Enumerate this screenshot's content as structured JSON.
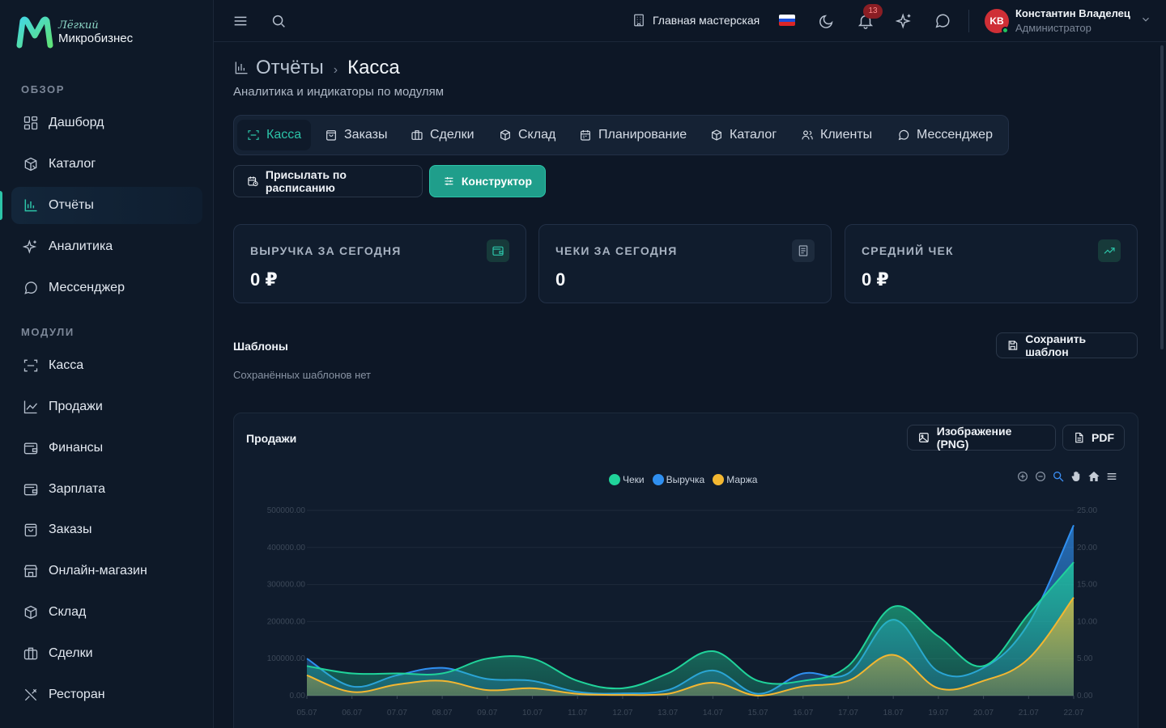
{
  "brand": {
    "sub": "Лёгкий",
    "main": "Микробизнес"
  },
  "sidebar": {
    "section_overview": "ОБЗОР",
    "overview_items": [
      {
        "label": "Дашборд",
        "icon": "dashboard-icon"
      },
      {
        "label": "Каталог",
        "icon": "catalog-icon"
      },
      {
        "label": "Отчёты",
        "icon": "reports-icon",
        "active": true
      },
      {
        "label": "Аналитика",
        "icon": "sparkle-icon"
      },
      {
        "label": "Мессенджер",
        "icon": "chat-icon"
      }
    ],
    "section_modules": "МОДУЛИ",
    "module_items": [
      {
        "label": "Касса",
        "icon": "scan-icon"
      },
      {
        "label": "Продажи",
        "icon": "line-chart-icon"
      },
      {
        "label": "Финансы",
        "icon": "wallet-icon"
      },
      {
        "label": "Зарплата",
        "icon": "wallet-icon"
      },
      {
        "label": "Заказы",
        "icon": "bag-icon"
      },
      {
        "label": "Онлайн-магазин",
        "icon": "store-icon"
      },
      {
        "label": "Склад",
        "icon": "box-icon"
      },
      {
        "label": "Сделки",
        "icon": "briefcase-icon"
      },
      {
        "label": "Ресторан",
        "icon": "utensils-icon"
      }
    ]
  },
  "topbar": {
    "workshop": "Главная мастерская",
    "notifications_count": "13",
    "user_initials": "KB",
    "user_name": "Константин Владелец",
    "user_role": "Администратор"
  },
  "page": {
    "crumb_parent": "Отчёты",
    "crumb_sep": "›",
    "crumb_current": "Касса",
    "subtitle": "Аналитика и индикаторы по модулям"
  },
  "tabs": [
    {
      "label": "Касса",
      "icon": "scan-icon",
      "active": true
    },
    {
      "label": "Заказы",
      "icon": "bag-icon"
    },
    {
      "label": "Сделки",
      "icon": "briefcase-icon"
    },
    {
      "label": "Склад",
      "icon": "box-icon"
    },
    {
      "label": "Планирование",
      "icon": "calendar-icon"
    },
    {
      "label": "Каталог",
      "icon": "catalog-icon"
    },
    {
      "label": "Клиенты",
      "icon": "users-icon"
    },
    {
      "label": "Мессенджер",
      "icon": "chat-icon"
    }
  ],
  "actions": {
    "schedule": "Присылать по расписанию",
    "builder": "Конструктор"
  },
  "kpis": [
    {
      "label": "ВЫРУЧКА ЗА СЕГОДНЯ",
      "value": "0 ₽",
      "icon": "wallet-icon"
    },
    {
      "label": "ЧЕКИ ЗА СЕГОДНЯ",
      "value": "0",
      "icon": "receipt-icon"
    },
    {
      "label": "СРЕДНИЙ ЧЕК",
      "value": "0 ₽",
      "icon": "trend-up-icon"
    }
  ],
  "templates": {
    "title": "Шаблоны",
    "empty": "Сохранённых шаблонов нет",
    "save": "Сохранить шаблон"
  },
  "sales_card": {
    "title": "Продажи",
    "png": "Изображение (PNG)",
    "pdf": "PDF"
  },
  "colors": {
    "accent": "#2cc4a8",
    "checks": "#20d39a",
    "revenue": "#2f8ff0",
    "margin": "#f3b731"
  },
  "chart_data": {
    "type": "area",
    "x": [
      "05.07",
      "06.07",
      "07.07",
      "08.07",
      "09.07",
      "10.07",
      "11.07",
      "12.07",
      "13.07",
      "14.07",
      "15.07",
      "16.07",
      "17.07",
      "18.07",
      "19.07",
      "20.07",
      "21.07",
      "22.07"
    ],
    "y_left_ticks": [
      "500000.00",
      "400000.00",
      "300000.00",
      "200000.00",
      "100000.00",
      "0.00"
    ],
    "y_right_ticks": [
      "25.00",
      "20.00",
      "15.00",
      "10.00",
      "5.00",
      "0.00"
    ],
    "ylim_left": [
      0,
      500000
    ],
    "ylim_right": [
      0,
      25
    ],
    "legend_position": "top-center",
    "series": [
      {
        "name": "Чеки",
        "axis": "right",
        "color": "#20d39a",
        "values": [
          4,
          3,
          3,
          3,
          5,
          5,
          2,
          1,
          3,
          6,
          2,
          2,
          4,
          12,
          8,
          4,
          11,
          18
        ]
      },
      {
        "name": "Выручка",
        "axis": "left",
        "color": "#2f8ff0",
        "values": [
          100000,
          25000,
          55000,
          75000,
          45000,
          40000,
          10000,
          6000,
          15000,
          68000,
          5000,
          60000,
          60000,
          205000,
          65000,
          75000,
          195000,
          460000
        ]
      },
      {
        "name": "Маржа",
        "axis": "left",
        "color": "#f3b731",
        "values": [
          55000,
          10000,
          30000,
          40000,
          15000,
          20000,
          5000,
          2000,
          5000,
          35000,
          0,
          25000,
          40000,
          110000,
          20000,
          40000,
          100000,
          265000
        ]
      }
    ]
  }
}
